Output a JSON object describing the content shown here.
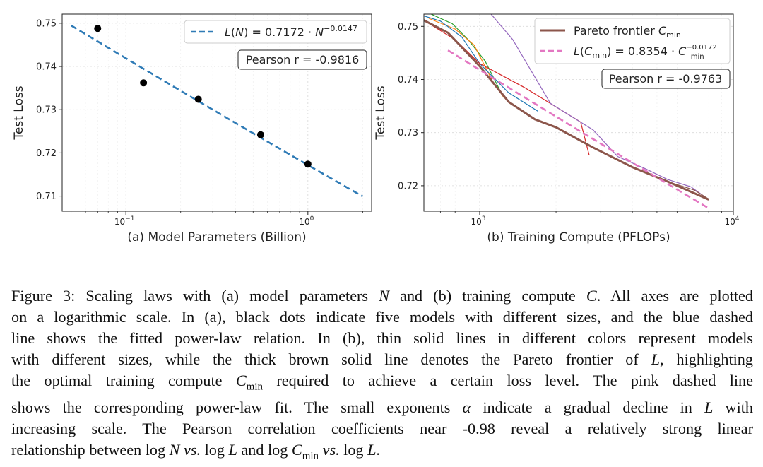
{
  "chart_data": [
    {
      "type": "scatter",
      "xscale": "log",
      "xlim_log10": [
        -1.35,
        0.35
      ],
      "ylim": [
        0.7065,
        0.7521
      ],
      "yticks": [
        0.71,
        0.72,
        0.73,
        0.74,
        0.75
      ],
      "ytick_labels": [
        "0.71",
        "0.72",
        "0.73",
        "0.74",
        "0.75"
      ],
      "xticks_log10": [
        -1,
        0
      ],
      "xtick_labels": [
        {
          "base": "10",
          "exp": "−1"
        },
        {
          "base": "10",
          "exp": "0"
        }
      ],
      "grid": true,
      "xlabel": "(a) Model Parameters (Billion)",
      "ylabel": "Test Loss",
      "points": [
        {
          "x": 0.07,
          "y": 0.7488
        },
        {
          "x": 0.125,
          "y": 0.7362
        },
        {
          "x": 0.25,
          "y": 0.7324
        },
        {
          "x": 0.55,
          "y": 0.7242
        },
        {
          "x": 1.0,
          "y": 0.7174
        }
      ],
      "fit": {
        "a": 0.7172,
        "b": -0.0147,
        "x_range": [
          0.05,
          2.0
        ],
        "color": "#2f7bb6"
      },
      "legend": {
        "placement": "top-right",
        "label": "L(N) = 0.7172 · N^−0.0147",
        "func": "L(N)",
        "coef": "0.7172",
        "var": "N",
        "exp": "−0.0147"
      },
      "annotation": "Pearson r = -0.9816"
    },
    {
      "type": "line",
      "xscale": "log",
      "xlim_log10": [
        2.78,
        4.0
      ],
      "ylim": [
        0.7152,
        0.7523
      ],
      "yticks": [
        0.72,
        0.73,
        0.74,
        0.75
      ],
      "ytick_labels": [
        "0.72",
        "0.73",
        "0.74",
        "0.75"
      ],
      "xticks_log10": [
        3,
        4
      ],
      "xtick_labels": [
        {
          "base": "10",
          "exp": "3"
        },
        {
          "base": "10",
          "exp": "4"
        }
      ],
      "grid": true,
      "xlabel": "(b) Training Compute (PFLOPs)",
      "ylabel": "Test Loss",
      "thin_series": [
        {
          "color": "#2ca02c",
          "points": [
            [
              630,
              0.7525
            ],
            [
              780,
              0.7505
            ],
            [
              900,
              0.7475
            ],
            [
              1050,
              0.7435
            ],
            [
              1230,
              0.737
            ],
            [
              1250,
              0.7365
            ]
          ]
        },
        {
          "color": "#ff7f0e",
          "points": [
            [
              630,
              0.7515
            ],
            [
              800,
              0.7495
            ],
            [
              950,
              0.7465
            ],
            [
              1130,
              0.7395
            ],
            [
              1250,
              0.7365
            ]
          ]
        },
        {
          "color": "#1f77b4",
          "points": [
            [
              600,
              0.752
            ],
            [
              700,
              0.751
            ],
            [
              850,
              0.748
            ],
            [
              1000,
              0.743
            ],
            [
              1300,
              0.7375
            ],
            [
              1700,
              0.734
            ]
          ]
        },
        {
          "color": "#d62728",
          "points": [
            [
              600,
              0.7512
            ],
            [
              800,
              0.7475
            ],
            [
              1000,
              0.743
            ],
            [
              1500,
              0.7385
            ],
            [
              2500,
              0.732
            ],
            [
              2700,
              0.7258
            ]
          ]
        },
        {
          "color": "#9467bd",
          "points": [
            [
              1100,
              0.7525
            ],
            [
              1350,
              0.7475
            ],
            [
              1900,
              0.7355
            ],
            [
              2800,
              0.7305
            ],
            [
              3500,
              0.7255
            ],
            [
              4500,
              0.7232
            ],
            [
              5500,
              0.7212
            ],
            [
              6800,
              0.7198
            ],
            [
              8000,
              0.7174
            ]
          ]
        },
        {
          "color": "#8c564b",
          "points": [
            [
              2600,
              0.728
            ],
            [
              4000,
              0.7235
            ],
            [
              5500,
              0.7208
            ],
            [
              7000,
              0.7192
            ],
            [
              8000,
              0.7175
            ]
          ]
        }
      ],
      "frontier": {
        "name": "Pareto frontier C_min",
        "color": "#8c564b",
        "points": [
          [
            600,
            0.7512
          ],
          [
            750,
            0.7488
          ],
          [
            1000,
            0.7425
          ],
          [
            1300,
            0.7358
          ],
          [
            1650,
            0.7325
          ],
          [
            2000,
            0.731
          ],
          [
            2800,
            0.7272
          ],
          [
            4000,
            0.7235
          ],
          [
            5500,
            0.7208
          ],
          [
            8000,
            0.7174
          ]
        ]
      },
      "fit": {
        "a": 0.8354,
        "b": -0.0172,
        "x_range": [
          750,
          8000
        ],
        "color": "#e377c2"
      },
      "legend": [
        {
          "label": "Pareto frontier C_min",
          "text": "Pareto frontier ",
          "sym": "C",
          "sub": "min"
        },
        {
          "label": "L(C_min) = 0.8354 · C_min^−0.0172",
          "coef": "0.8354",
          "exp": "−0.0172"
        }
      ],
      "legend_placement": "top-right",
      "annotation": "Pearson r = -0.9763"
    }
  ],
  "caption": {
    "lines": [
      [
        {
          "t": "Figure 3: Scaling laws with (a) model parameters "
        },
        {
          "m": "N"
        },
        {
          "t": " and (b) training compute "
        },
        {
          "m": "C"
        },
        {
          "t": ". All axes are plotted"
        }
      ],
      [
        {
          "t": "on a logarithmic scale. In (a), black dots indicate five models with different sizes, and the blue dashed"
        }
      ],
      [
        {
          "t": "line shows the fitted power-law relation. In (b), thin solid lines in different colors represent models"
        }
      ],
      [
        {
          "t": "with different sizes, while the thick brown solid line denotes the Pareto frontier of "
        },
        {
          "m": "L"
        },
        {
          "t": ", highlighting"
        }
      ],
      [
        {
          "t": "the optimal training compute "
        },
        {
          "m": "C"
        },
        {
          "sub": "min"
        },
        {
          "t": " required to achieve a certain loss level. The pink dashed line"
        }
      ],
      [
        {
          "t": "shows the corresponding power-law fit. The small exponents "
        },
        {
          "m": "α"
        },
        {
          "t": " indicate a gradual decline in "
        },
        {
          "m": "L"
        },
        {
          "t": " with"
        }
      ],
      [
        {
          "t": "increasing scale. The Pearson correlation coefficients near -0.98 reveal a relatively strong linear"
        }
      ],
      [
        {
          "t": "relationship between log "
        },
        {
          "m": "N"
        },
        {
          "t": " "
        },
        {
          "m": "vs."
        },
        {
          "t": " log "
        },
        {
          "m": "L"
        },
        {
          "t": " and log "
        },
        {
          "m": "C"
        },
        {
          "sub": "min"
        },
        {
          "t": " "
        },
        {
          "m": "vs."
        },
        {
          "t": " log "
        },
        {
          "m": "L"
        },
        {
          "t": "."
        }
      ]
    ]
  }
}
